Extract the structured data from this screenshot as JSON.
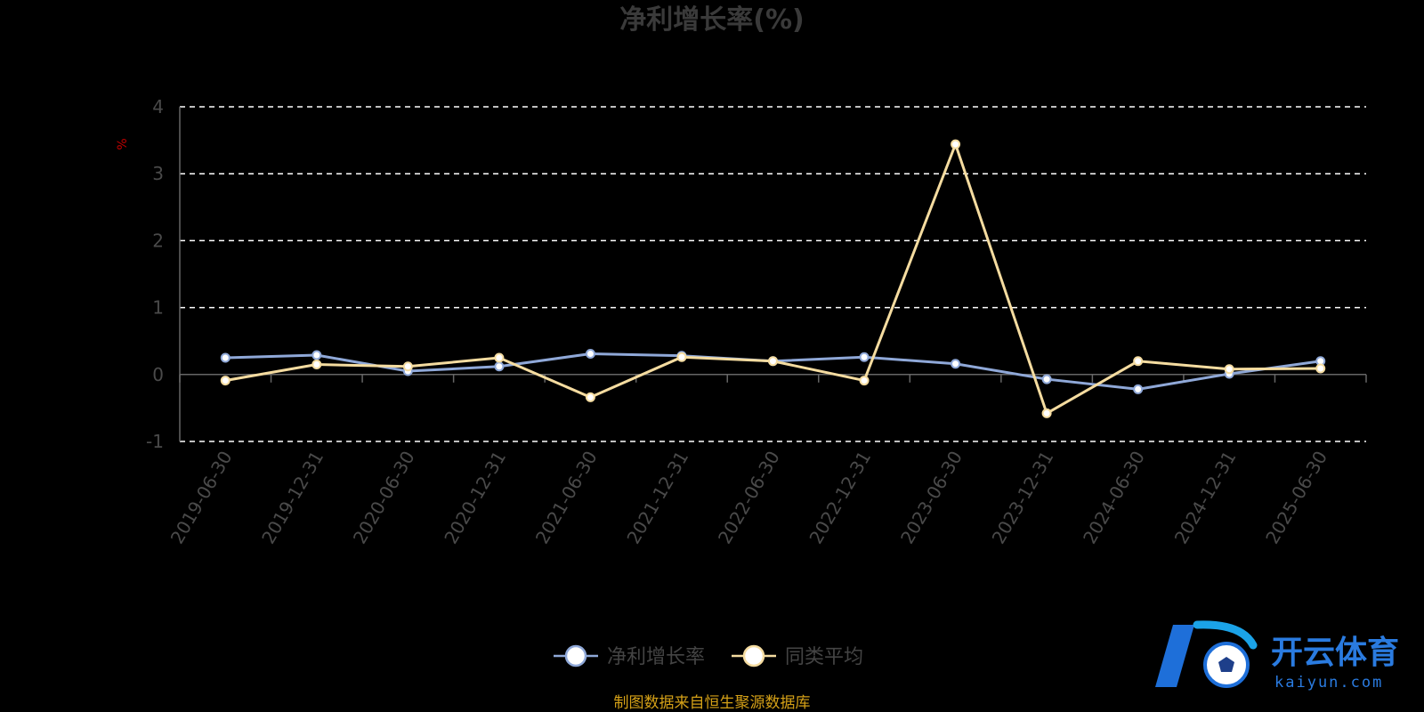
{
  "chart_data": {
    "type": "line",
    "title": "净利增长率(%)",
    "ylabel": "%",
    "ylim": [
      -1,
      4
    ],
    "yticks": [
      -1,
      0,
      1,
      2,
      3,
      4
    ],
    "categories": [
      "2019-06-30",
      "2019-12-31",
      "2020-06-30",
      "2020-12-31",
      "2021-06-30",
      "2021-12-31",
      "2022-06-30",
      "2022-12-31",
      "2023-06-30",
      "2023-12-31",
      "2024-06-30",
      "2024-12-31",
      "2025-06-30"
    ],
    "series": [
      {
        "name": "净利增长率",
        "color": "#8fa8d8",
        "values": [
          0.25,
          0.29,
          0.05,
          0.12,
          0.31,
          0.28,
          0.2,
          0.26,
          0.16,
          -0.07,
          -0.22,
          0.01,
          0.2
        ]
      },
      {
        "name": "同类平均",
        "color": "#f5dca0",
        "values": [
          -0.09,
          0.15,
          0.12,
          0.25,
          -0.34,
          0.26,
          0.2,
          -0.09,
          3.44,
          -0.58,
          0.2,
          0.08,
          0.09
        ]
      }
    ],
    "grid": true,
    "legend_position": "bottom-center"
  },
  "source_note": "制图数据来自恒生聚源数据库",
  "watermark": {
    "brand": "开云体育",
    "domain": "kaiyun.com",
    "icon": "soccer-ball-logo"
  }
}
